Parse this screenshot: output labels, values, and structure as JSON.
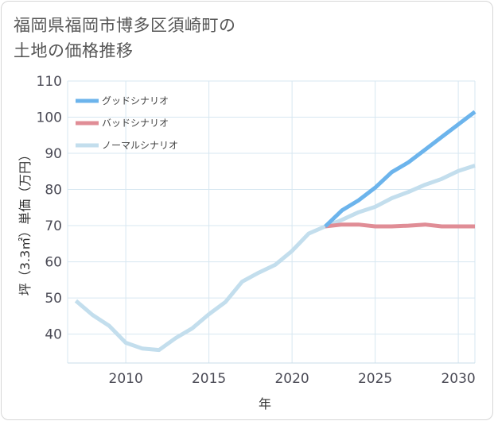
{
  "title_line1": "福岡県福岡市博多区須崎町の",
  "title_line2": "土地の価格推移",
  "chart_data": {
    "type": "line",
    "title": "福岡県福岡市博多区須崎町の土地の価格推移",
    "xlabel": "年",
    "ylabel": "坪（3.3㎡）単価（万円）",
    "xlim": [
      2006.5,
      2031
    ],
    "ylim": [
      32,
      110
    ],
    "xticks": [
      2010,
      2015,
      2020,
      2025,
      2030
    ],
    "yticks": [
      40,
      50,
      60,
      70,
      80,
      90,
      100,
      110
    ],
    "grid": true,
    "legend_position": "top-left",
    "series": [
      {
        "name": "グッドシナリオ",
        "color": "#6cb4ec",
        "x": [
          2022,
          2023,
          2024,
          2025,
          2026,
          2027,
          2028,
          2029,
          2030,
          2031
        ],
        "values": [
          69.8,
          74.2,
          77.0,
          80.5,
          84.8,
          87.5,
          91.0,
          94.5,
          98.0,
          101.5
        ]
      },
      {
        "name": "バッドシナリオ",
        "color": "#e08d96",
        "x": [
          2022,
          2023,
          2024,
          2025,
          2026,
          2027,
          2028,
          2029,
          2030,
          2031
        ],
        "values": [
          69.8,
          70.3,
          70.3,
          69.8,
          69.8,
          70.0,
          70.3,
          69.8,
          69.8,
          69.8
        ]
      },
      {
        "name": "ノーマルシナリオ",
        "color": "#c3deed",
        "x": [
          2007,
          2008,
          2009,
          2010,
          2011,
          2012,
          2013,
          2014,
          2015,
          2016,
          2017,
          2018,
          2019,
          2020,
          2021,
          2022,
          2023,
          2024,
          2025,
          2026,
          2027,
          2028,
          2029,
          2030,
          2031
        ],
        "values": [
          49.2,
          45.3,
          42.3,
          37.6,
          36.0,
          35.6,
          38.9,
          41.6,
          45.5,
          48.9,
          54.5,
          57.0,
          59.2,
          63.0,
          67.8,
          69.8,
          71.6,
          73.7,
          75.2,
          77.6,
          79.3,
          81.3,
          82.9,
          85.1,
          86.6
        ]
      }
    ]
  }
}
